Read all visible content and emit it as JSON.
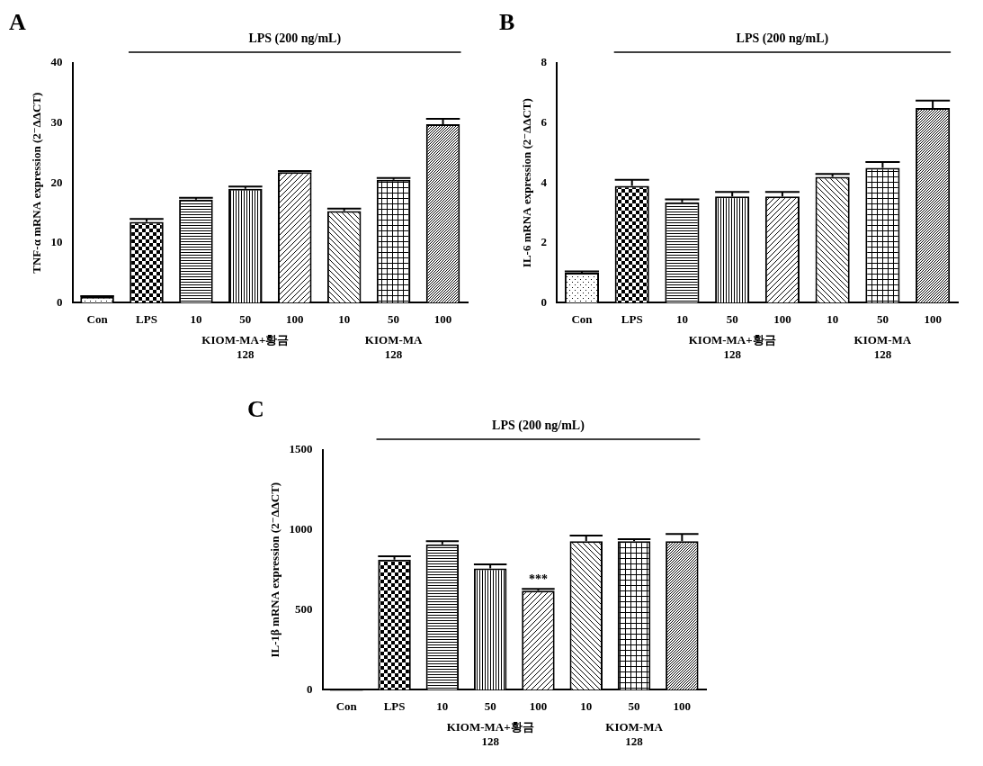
{
  "chart_data": [
    {
      "type": "bar",
      "panel": "A",
      "y_label": "TNF-α mRNA expression (2⁻ΔΔCT)",
      "annotation_line": {
        "text": "LPS (200 ng/mL)",
        "span": [
          1,
          7
        ]
      },
      "groups": [
        {
          "lines": [
            "KIOM-MA+황금",
            "128"
          ],
          "members": [
            2,
            3,
            4
          ]
        },
        {
          "lines": [
            "KIOM-MA",
            "128"
          ],
          "members": [
            5,
            6,
            7
          ]
        }
      ],
      "categories": [
        "Con",
        "LPS",
        "10",
        "50",
        "100",
        "10",
        "50",
        "100"
      ],
      "values": [
        1,
        13.5,
        17.2,
        19,
        21.8,
        15.3,
        20.5,
        29.8
      ],
      "errors": [
        0.1,
        0.5,
        0.3,
        0.4,
        0.2,
        0.4,
        0.3,
        0.9
      ],
      "color": "#000000",
      "ylim": [
        0,
        40
      ],
      "yticks": [
        0,
        10,
        20,
        30,
        40
      ],
      "grid": false
    },
    {
      "type": "bar",
      "panel": "B",
      "y_label": "IL-6 mRNA expression (2⁻ΔΔCT)",
      "annotation_line": {
        "text": "LPS (200 ng/mL)",
        "span": [
          1,
          7
        ]
      },
      "groups": [
        {
          "lines": [
            "KIOM-MA+황금",
            "128"
          ],
          "members": [
            2,
            3,
            4
          ]
        },
        {
          "lines": [
            "KIOM-MA",
            "128"
          ],
          "members": [
            5,
            6,
            7
          ]
        }
      ],
      "categories": [
        "Con",
        "LPS",
        "10",
        "50",
        "100",
        "10",
        "50",
        "100"
      ],
      "values": [
        1,
        3.9,
        3.35,
        3.55,
        3.55,
        4.2,
        4.5,
        6.5
      ],
      "errors": [
        0.05,
        0.2,
        0.1,
        0.15,
        0.15,
        0.1,
        0.2,
        0.25
      ],
      "color": "#000000",
      "ylim": [
        0,
        8
      ],
      "yticks": [
        0,
        2,
        4,
        6,
        8
      ],
      "grid": false
    },
    {
      "type": "bar",
      "panel": "C",
      "y_label": "IL-1β mRNA expression (2⁻ΔΔCT)",
      "annotation_line": {
        "text": "LPS (200 ng/mL)",
        "span": [
          1,
          7
        ]
      },
      "groups": [
        {
          "lines": [
            "KIOM-MA+황금",
            "128"
          ],
          "members": [
            2,
            3,
            4
          ]
        },
        {
          "lines": [
            "KIOM-MA",
            "128"
          ],
          "members": [
            5,
            6,
            7
          ]
        }
      ],
      "annotations": [
        {
          "text": "***",
          "category": 4
        }
      ],
      "categories": [
        "Con",
        "LPS",
        "10",
        "50",
        "100",
        "10",
        "50",
        "100"
      ],
      "values": [
        1,
        815,
        910,
        760,
        620,
        930,
        930,
        930
      ],
      "errors": [
        0,
        20,
        20,
        25,
        12,
        35,
        12,
        45
      ],
      "color": "#000000",
      "ylim": [
        0,
        1500
      ],
      "yticks": [
        0,
        500,
        1000,
        1500
      ],
      "grid": false
    }
  ]
}
